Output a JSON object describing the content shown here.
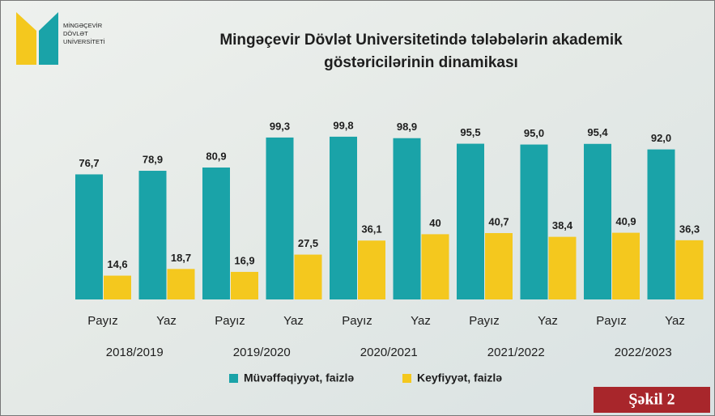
{
  "logo": [
    "MİNGƏÇEVİR",
    "DÖVLƏT",
    "UNİVERSİTETİ"
  ],
  "figure_label": "Şəkil 2",
  "chart_data": {
    "type": "bar",
    "title": [
      "Mingəçevir Dövlət Universitetində tələbələrin akademik",
      "göstəricilərinin dinamikası"
    ],
    "categories": [
      "Payız",
      "Yaz",
      "Payız",
      "Yaz",
      "Payız",
      "Yaz",
      "Payız",
      "Yaz",
      "Payız",
      "Yaz"
    ],
    "groups": [
      "2018/2019",
      "2019/2020",
      "2020/2021",
      "2021/2022",
      "2022/2023"
    ],
    "ylim": [
      0,
      100
    ],
    "series": [
      {
        "name": "Müvəffəqiyyət, faizlə",
        "color": "#1aa3a8",
        "values": [
          76.7,
          78.9,
          80.9,
          99.3,
          99.8,
          98.9,
          95.5,
          95.0,
          95.4,
          92.0
        ],
        "value_labels": [
          "76,7",
          "78,9",
          "80,9",
          "99,3",
          "99,8",
          "98,9",
          "95,5",
          "95,0",
          "95,4",
          "92,0"
        ]
      },
      {
        "name": "Keyfiyyət, faizlə",
        "color": "#f4c81e",
        "values": [
          14.6,
          18.7,
          16.9,
          27.5,
          36.1,
          40,
          40.7,
          38.4,
          40.9,
          36.3
        ],
        "value_labels": [
          "14,6",
          "18,7",
          "16,9",
          "27,5",
          "36,1",
          "40",
          "40,7",
          "38,4",
          "40,9",
          "36,3"
        ]
      }
    ],
    "legend": "bottom"
  }
}
